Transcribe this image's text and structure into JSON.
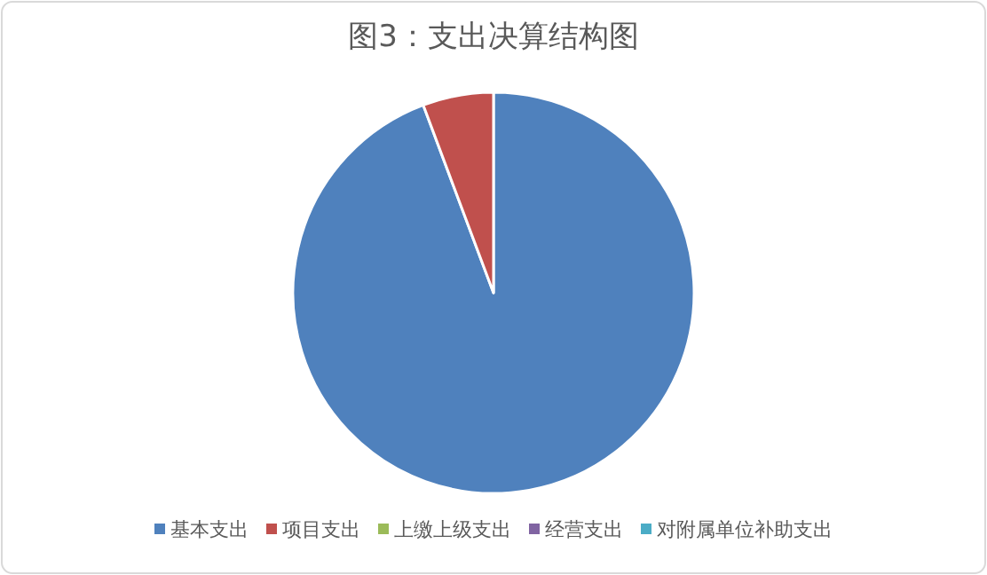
{
  "chart_data": {
    "type": "pie",
    "title": "图3：支出决算结构图",
    "categories": [
      "基本支出",
      "项目支出",
      "上缴上级支出",
      "经营支出",
      "对附属单位补助支出"
    ],
    "values": [
      94.3,
      5.7,
      0,
      0,
      0
    ],
    "colors": [
      "#4f81bd",
      "#c0504d",
      "#9bbb59",
      "#8064a2",
      "#4bacc6"
    ],
    "legend": "bottom"
  }
}
